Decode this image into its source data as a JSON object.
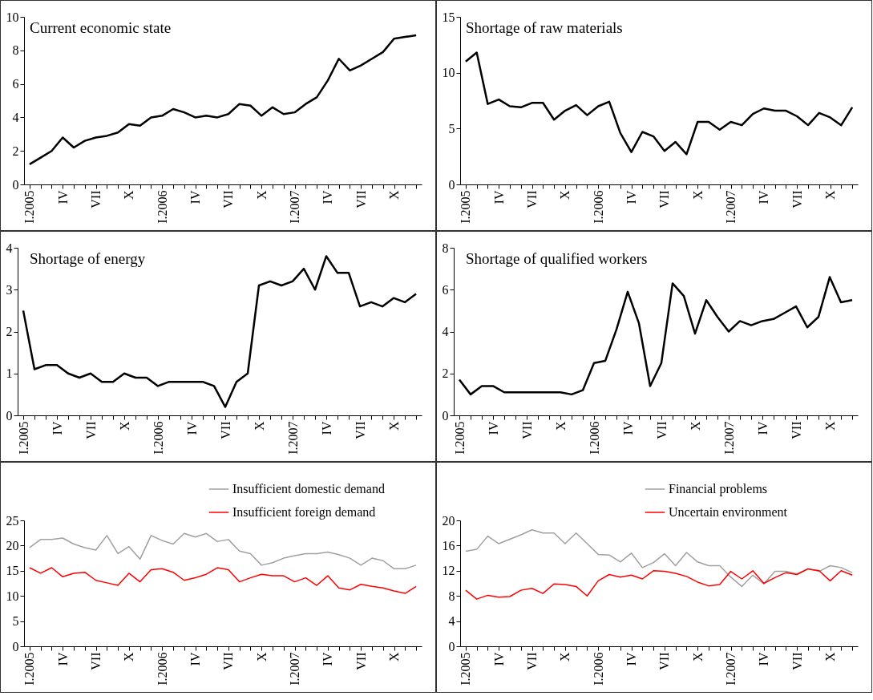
{
  "chart_data": [
    {
      "type": "line",
      "title": "Current economic state",
      "categories": [
        "I.2005",
        null,
        null,
        "IV",
        null,
        null,
        "VII",
        null,
        null,
        "X",
        null,
        null,
        "I.2006",
        null,
        null,
        "IV",
        null,
        null,
        "VII",
        null,
        null,
        "X",
        null,
        null,
        "I.2007",
        null,
        null,
        "IV",
        null,
        null,
        "VII",
        null,
        null,
        "X",
        null,
        null
      ],
      "series": [
        {
          "color": "#000000",
          "values": [
            1.2,
            1.6,
            2.0,
            2.8,
            2.2,
            2.6,
            2.8,
            2.9,
            3.1,
            3.6,
            3.5,
            4.0,
            4.1,
            4.5,
            4.3,
            4.0,
            4.1,
            4.0,
            4.2,
            4.8,
            4.7,
            4.1,
            4.6,
            4.2,
            4.3,
            4.8,
            5.2,
            6.2,
            7.5,
            6.8,
            7.1,
            7.5,
            7.9,
            8.7,
            8.8,
            8.9
          ]
        }
      ],
      "ylim": [
        0,
        10
      ],
      "yticks": [
        0,
        2,
        4,
        6,
        8,
        10
      ]
    },
    {
      "type": "line",
      "title": "Shortage of raw materials",
      "categories": [
        "I.2005",
        null,
        null,
        "IV",
        null,
        null,
        "VII",
        null,
        null,
        "X",
        null,
        null,
        "I.2006",
        null,
        null,
        "IV",
        null,
        null,
        "VII",
        null,
        null,
        "X",
        null,
        null,
        "I.2007",
        null,
        null,
        "IV",
        null,
        null,
        "VII",
        null,
        null,
        "X",
        null,
        null
      ],
      "series": [
        {
          "color": "#000000",
          "values": [
            11.0,
            11.8,
            7.2,
            7.6,
            7.0,
            6.9,
            7.3,
            7.3,
            5.8,
            6.6,
            7.1,
            6.2,
            7.0,
            7.4,
            4.6,
            2.9,
            4.7,
            4.3,
            3.0,
            3.8,
            2.7,
            5.6,
            5.6,
            4.9,
            5.6,
            5.3,
            6.3,
            6.8,
            6.6,
            6.6,
            6.1,
            5.3,
            6.4,
            6.0,
            5.3,
            6.9
          ]
        }
      ],
      "ylim": [
        0,
        15
      ],
      "yticks": [
        0,
        5,
        10,
        15
      ]
    },
    {
      "type": "line",
      "title": "Shortage of energy",
      "categories": [
        "I.2005",
        null,
        null,
        "IV",
        null,
        null,
        "VII",
        null,
        null,
        "X",
        null,
        null,
        "I.2006",
        null,
        null,
        "IV",
        null,
        null,
        "VII",
        null,
        null,
        "X",
        null,
        null,
        "I.2007",
        null,
        null,
        "IV",
        null,
        null,
        "VII",
        null,
        null,
        "X",
        null,
        null
      ],
      "series": [
        {
          "color": "#000000",
          "values": [
            2.5,
            1.1,
            1.2,
            1.2,
            1.0,
            0.9,
            1.0,
            0.8,
            0.8,
            1.0,
            0.9,
            0.9,
            0.7,
            0.8,
            0.8,
            0.8,
            0.8,
            0.7,
            0.2,
            0.8,
            1.0,
            3.1,
            3.2,
            3.1,
            3.2,
            3.5,
            3.0,
            3.8,
            3.4,
            3.4,
            2.6,
            2.7,
            2.6,
            2.8,
            2.7,
            2.9
          ]
        }
      ],
      "ylim": [
        0,
        4
      ],
      "yticks": [
        0,
        1,
        2,
        3,
        4
      ]
    },
    {
      "type": "line",
      "title": "Shortage of qualified workers",
      "categories": [
        "I.2005",
        null,
        null,
        "IV",
        null,
        null,
        "VII",
        null,
        null,
        "X",
        null,
        null,
        "I.2006",
        null,
        null,
        "IV",
        null,
        null,
        "VII",
        null,
        null,
        "X",
        null,
        null,
        "I.2007",
        null,
        null,
        "IV",
        null,
        null,
        "VII",
        null,
        null,
        "X",
        null,
        null
      ],
      "series": [
        {
          "color": "#000000",
          "values": [
            1.7,
            1.0,
            1.4,
            1.4,
            1.1,
            1.1,
            1.1,
            1.1,
            1.1,
            1.1,
            1.0,
            1.2,
            2.5,
            2.6,
            4.1,
            5.9,
            4.4,
            1.4,
            2.5,
            6.3,
            5.7,
            3.9,
            5.5,
            4.7,
            4.0,
            4.5,
            4.3,
            4.5,
            4.6,
            4.9,
            5.2,
            4.2,
            4.7,
            6.6,
            5.4,
            5.5
          ]
        }
      ],
      "ylim": [
        0,
        8
      ],
      "yticks": [
        0,
        2,
        4,
        6,
        8
      ]
    },
    {
      "type": "line",
      "categories": [
        "I.2005",
        null,
        null,
        "IV",
        null,
        null,
        "VII",
        null,
        null,
        "X",
        null,
        null,
        "I.2006",
        null,
        null,
        "IV",
        null,
        null,
        "VII",
        null,
        null,
        "X",
        null,
        null,
        "I.2007",
        null,
        null,
        "IV",
        null,
        null,
        "VII",
        null,
        null,
        "X",
        null,
        null
      ],
      "series": [
        {
          "name": "Insufficient domestic demand",
          "color": "#a0a0a0",
          "values": [
            19.6,
            21.2,
            21.2,
            21.5,
            20.3,
            19.6,
            19.1,
            22.0,
            18.4,
            19.8,
            17.3,
            22.0,
            21.0,
            20.3,
            22.4,
            21.7,
            22.4,
            20.8,
            21.2,
            18.9,
            18.4,
            16.1,
            16.6,
            17.5,
            18.0,
            18.4,
            18.4,
            18.7,
            18.2,
            17.5,
            16.1,
            17.5,
            17.0,
            15.4,
            15.4,
            16.1
          ]
        },
        {
          "name": "Insufficient foreign demand",
          "color": "#ff0000",
          "values": [
            15.6,
            14.5,
            15.6,
            13.8,
            14.5,
            14.7,
            13.1,
            12.6,
            12.1,
            14.5,
            12.8,
            15.2,
            15.4,
            14.7,
            13.1,
            13.6,
            14.3,
            15.6,
            15.2,
            12.8,
            13.6,
            14.3,
            14.0,
            14.0,
            12.8,
            13.6,
            12.1,
            14.0,
            11.6,
            11.2,
            12.3,
            11.9,
            11.6,
            11.0,
            10.5,
            11.9
          ]
        }
      ],
      "ylim": [
        0,
        25
      ],
      "yticks": [
        0,
        5,
        10,
        15,
        20,
        25
      ],
      "legend": "top right"
    },
    {
      "type": "line",
      "categories": [
        "I.2005",
        null,
        null,
        "IV",
        null,
        null,
        "VII",
        null,
        null,
        "X",
        null,
        null,
        "I.2006",
        null,
        null,
        "IV",
        null,
        null,
        "VII",
        null,
        null,
        "X",
        null,
        null,
        "I.2007",
        null,
        null,
        "IV",
        null,
        null,
        "VII",
        null,
        null,
        "X",
        null,
        null
      ],
      "series": [
        {
          "name": "Financial problems",
          "color": "#a0a0a0",
          "values": [
            15.1,
            15.4,
            17.5,
            16.3,
            17.0,
            17.7,
            18.5,
            18.0,
            18.0,
            16.3,
            18.0,
            16.3,
            14.6,
            14.5,
            13.4,
            14.8,
            12.5,
            13.3,
            14.7,
            12.8,
            14.9,
            13.4,
            12.8,
            12.8,
            11.0,
            9.5,
            11.3,
            9.9,
            11.9,
            11.9,
            11.5,
            12.3,
            11.9,
            12.8,
            12.5,
            11.7
          ]
        },
        {
          "name": "Uncertain environment",
          "color": "#ff0000",
          "values": [
            8.9,
            7.5,
            8.1,
            7.8,
            7.9,
            8.9,
            9.2,
            8.4,
            9.9,
            9.8,
            9.5,
            8.0,
            10.4,
            11.4,
            11.0,
            11.3,
            10.7,
            12.0,
            11.9,
            11.6,
            11.1,
            10.2,
            9.6,
            9.8,
            11.9,
            10.7,
            12.0,
            10.0,
            10.9,
            11.7,
            11.4,
            12.3,
            12.0,
            10.4,
            12.0,
            11.3
          ]
        }
      ],
      "ylim": [
        0,
        20
      ],
      "yticks": [
        0,
        4,
        8,
        12,
        16,
        20
      ],
      "legend": "top right"
    }
  ]
}
